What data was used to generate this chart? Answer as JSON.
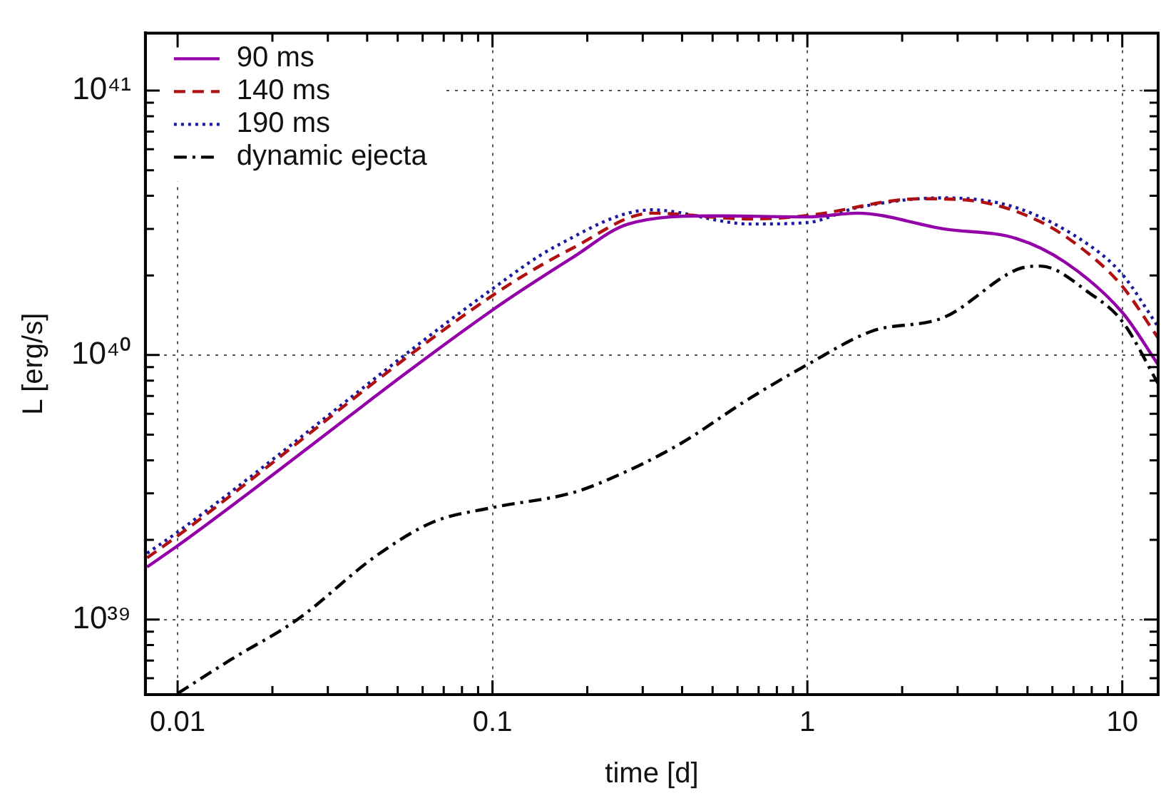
{
  "chart_data": {
    "type": "line",
    "xlabel": "time [d]",
    "ylabel": "L [erg/s]",
    "log": "xy",
    "grid": true,
    "legend": "top left",
    "marker": "none",
    "xlim": [
      0.0079,
      13
    ],
    "ylim": [
      5.2e+38,
      1.65e+41
    ],
    "xticks": [
      0.01,
      {
        "value": 0.02,
        "label": null
      },
      {
        "value": 0.03,
        "label": null
      },
      {
        "value": 0.04,
        "label": null
      },
      {
        "value": 0.05,
        "label": null
      },
      {
        "value": 0.06,
        "label": null
      },
      {
        "value": 0.07,
        "label": null
      },
      {
        "value": 0.08,
        "label": null
      },
      {
        "value": 0.09,
        "label": null
      },
      0.1,
      {
        "value": 0.2,
        "label": null
      },
      {
        "value": 0.3,
        "label": null
      },
      {
        "value": 0.4,
        "label": null
      },
      {
        "value": 0.5,
        "label": null
      },
      {
        "value": 0.6,
        "label": null
      },
      {
        "value": 0.7,
        "label": null
      },
      {
        "value": 0.8,
        "label": null
      },
      {
        "value": 0.9,
        "label": null
      },
      1,
      {
        "value": 2,
        "label": null
      },
      {
        "value": 3,
        "label": null
      },
      {
        "value": 4,
        "label": null
      },
      {
        "value": 5,
        "label": null
      },
      {
        "value": 6,
        "label": null
      },
      {
        "value": 7,
        "label": null
      },
      {
        "value": 8,
        "label": null
      },
      {
        "value": 9,
        "label": null
      },
      10
    ],
    "yticks": [
      {
        "value": 6e+38,
        "label": null
      },
      {
        "value": 7e+38,
        "label": null
      },
      {
        "value": 8e+38,
        "label": null
      },
      {
        "value": 9e+38,
        "label": null
      },
      {
        "value": 1e+39,
        "label": "10³⁹"
      },
      {
        "value": 2e+39,
        "label": null
      },
      {
        "value": 3e+39,
        "label": null
      },
      {
        "value": 4e+39,
        "label": null
      },
      {
        "value": 5e+39,
        "label": null
      },
      {
        "value": 6e+39,
        "label": null
      },
      {
        "value": 7e+39,
        "label": null
      },
      {
        "value": 8e+39,
        "label": null
      },
      {
        "value": 9e+39,
        "label": null
      },
      {
        "value": 1e+40,
        "label": "10⁴⁰"
      },
      {
        "value": 2e+40,
        "label": null
      },
      {
        "value": 3e+40,
        "label": null
      },
      {
        "value": 4e+40,
        "label": null
      },
      {
        "value": 5e+40,
        "label": null
      },
      {
        "value": 6e+40,
        "label": null
      },
      {
        "value": 7e+40,
        "label": null
      },
      {
        "value": 8e+40,
        "label": null
      },
      {
        "value": 9e+40,
        "label": null
      },
      {
        "value": 1e+41,
        "label": "10⁴¹"
      }
    ],
    "series": [
      {
        "name": "90 ms",
        "color": "#9400a8",
        "line_style": "solid",
        "x": [
          0.008,
          0.01,
          0.1,
          0.18,
          0.27,
          0.5,
          1,
          1.44,
          2.7,
          4.6,
          6.6,
          10,
          13
        ],
        "values": [
          1.58e+39,
          1.9e+39,
          1.48e+40,
          2.34e+40,
          3.13e+40,
          3.36e+40,
          3.33e+40,
          3.44e+40,
          3e+40,
          2.76e+40,
          2.24e+40,
          1.45e+40,
          9.2e+39
        ]
      },
      {
        "name": "140 ms",
        "color": "#b01010",
        "line_style": "dashed",
        "x": [
          0.008,
          0.01,
          0.1,
          0.18,
          0.32,
          0.66,
          1,
          2.28,
          3.25,
          5.5,
          7.9,
          10,
          13
        ],
        "values": [
          1.71e+39,
          2.07e+39,
          1.68e+40,
          2.54e+40,
          3.44e+40,
          3.27e+40,
          3.37e+40,
          3.9e+40,
          3.85e+40,
          3.19e+40,
          2.39e+40,
          1.82e+40,
          1.16e+40
        ]
      },
      {
        "name": "190 ms",
        "color": "#1a1aa0",
        "line_style": "dotted",
        "x": [
          0.008,
          0.01,
          0.1,
          0.16,
          0.32,
          0.66,
          1,
          1.44,
          2.7,
          4.6,
          7.9,
          10,
          13
        ],
        "values": [
          1.78e+39,
          2.14e+39,
          1.78e+40,
          2.59e+40,
          3.54e+40,
          3.13e+40,
          3.17e+40,
          3.61e+40,
          3.93e+40,
          3.61e+40,
          2.59e+40,
          2.02e+40,
          1.28e+40
        ]
      },
      {
        "name": "dynamic ejecta",
        "color": "#000000",
        "line_style": "dashdot",
        "x": [
          0.01,
          0.0147,
          0.024,
          0.043,
          0.065,
          0.1,
          0.177,
          0.226,
          0.385,
          0.66,
          1,
          1.6,
          2.72,
          4.65,
          5.5,
          7.9,
          10,
          13
        ],
        "values": [
          5.25e+38,
          7.03e+38,
          1e+39,
          1.75e+39,
          2.34e+39,
          2.65e+39,
          3e+39,
          3.33e+39,
          4.54e+39,
          6.89e+39,
          9.2e+39,
          1.23e+40,
          1.39e+40,
          2.11e+40,
          2.17e+40,
          1.71e+40,
          1.34e+40,
          7.8e+39
        ]
      }
    ]
  }
}
